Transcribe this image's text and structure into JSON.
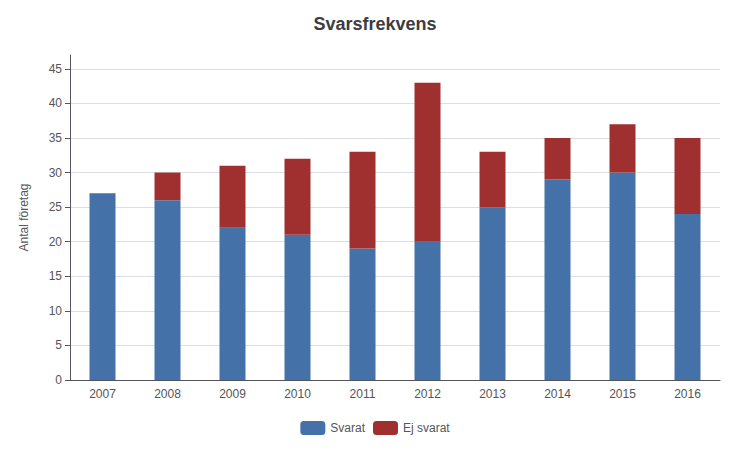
{
  "chart_data": {
    "type": "bar",
    "title": "Svarsfrekvens",
    "ylabel": "Antal företag",
    "categories": [
      "2007",
      "2008",
      "2009",
      "2010",
      "2011",
      "2012",
      "2013",
      "2014",
      "2015",
      "2016"
    ],
    "series": [
      {
        "name": "Svarat",
        "color": "#4472a8",
        "values": [
          27,
          26,
          22,
          21,
          19,
          20,
          25,
          29,
          30,
          24
        ]
      },
      {
        "name": "Ej svarat",
        "color": "#a03030",
        "values": [
          0,
          4,
          9,
          11,
          14,
          23,
          8,
          6,
          7,
          11
        ]
      }
    ],
    "stacked": true,
    "ylim": [
      0,
      47
    ],
    "yticks": [
      0,
      5,
      10,
      15,
      20,
      25,
      30,
      35,
      40,
      45
    ],
    "grid": true,
    "legend": "bottom"
  }
}
